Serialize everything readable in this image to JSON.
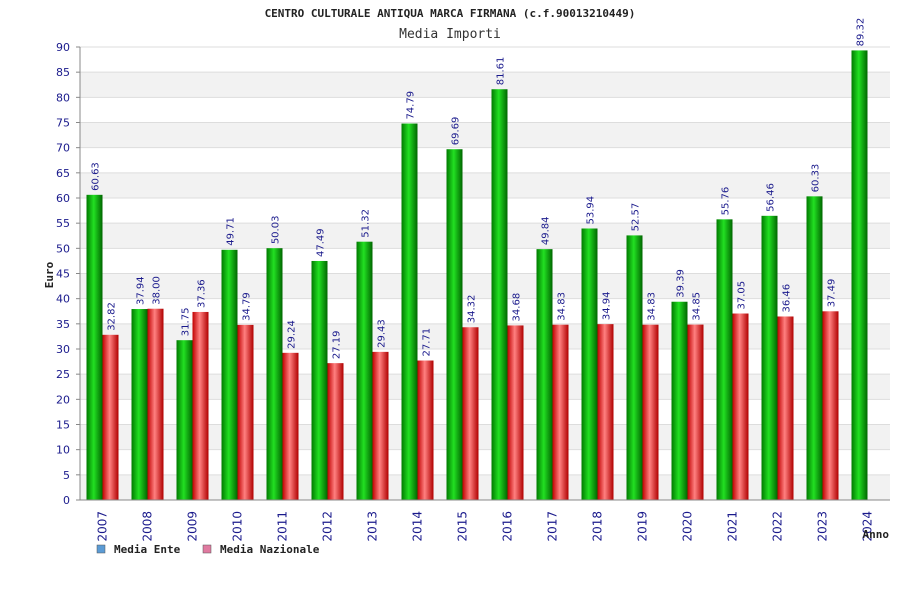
{
  "chart_data": {
    "type": "bar",
    "title": "CENTRO CULTURALE ANTIQUA MARCA FIRMANA (c.f.90013210449)",
    "subtitle": "Media Importi",
    "xlabel": "Anno",
    "ylabel": "Euro",
    "ylim": [
      0,
      90
    ],
    "ytick_step": 5,
    "categories": [
      "2007",
      "2008",
      "2009",
      "2010",
      "2011",
      "2012",
      "2013",
      "2014",
      "2015",
      "2016",
      "2017",
      "2018",
      "2019",
      "2020",
      "2021",
      "2022",
      "2023",
      "2024"
    ],
    "series": [
      {
        "name": "Media Ente",
        "color": "#00a000",
        "values": [
          60.63,
          37.94,
          31.75,
          49.71,
          50.03,
          47.49,
          51.32,
          74.79,
          69.69,
          81.61,
          49.84,
          53.94,
          52.57,
          39.39,
          55.76,
          56.46,
          60.33,
          89.32
        ],
        "labels": [
          "60.63",
          "37.94",
          "31.75",
          "49.71",
          "50.03",
          "47.49",
          "51.32",
          "74.79",
          "69.69",
          "81.61",
          "49.84",
          "53.94",
          "52.57",
          "39.39",
          "55.76",
          "56.46",
          "60.33",
          "89.32"
        ]
      },
      {
        "name": "Media Nazionale",
        "color": "#e02020",
        "values": [
          32.82,
          38.0,
          37.36,
          34.79,
          29.24,
          27.19,
          29.43,
          27.71,
          34.32,
          34.68,
          34.83,
          34.94,
          34.83,
          34.85,
          37.05,
          36.46,
          37.49,
          null
        ],
        "labels": [
          "32.82",
          "38.00",
          "37.36",
          "34.79",
          "29.24",
          "27.19",
          "29.43",
          "27.71",
          "34.32",
          "34.68",
          "34.83",
          "34.94",
          "34.83",
          "34.85",
          "37.05",
          "36.46",
          "37.49",
          null
        ]
      }
    ],
    "legend": {
      "placement": "bottom-left",
      "items": [
        {
          "label": "Media Ente",
          "swatch_color": "#5b9bd5"
        },
        {
          "label": "Media Nazionale",
          "swatch_color": "#e07aa0"
        }
      ]
    },
    "grid": true,
    "band_colors": [
      "#f2f2f2",
      "#ffffff"
    ]
  }
}
